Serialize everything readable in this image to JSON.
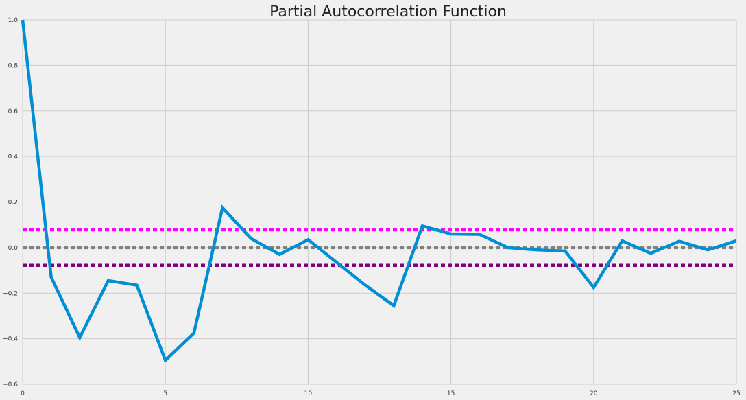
{
  "chart_data": {
    "type": "line",
    "title": "Partial Autocorrelation Function",
    "xlabel": "",
    "ylabel": "",
    "xlim": [
      0,
      25
    ],
    "ylim": [
      -0.6,
      1.0
    ],
    "grid": true,
    "x_ticks": [
      "0",
      "5",
      "10",
      "15",
      "20",
      "25"
    ],
    "y_ticks": [
      "1.0",
      "0.8",
      "0.6",
      "0.4",
      "0.2",
      "0.0",
      "−0.2",
      "−0.4",
      "−0.6"
    ],
    "series": [
      {
        "color": "#008fd5",
        "x": [
          0,
          1,
          2,
          3,
          4,
          5,
          6,
          7,
          8,
          9,
          10,
          11,
          12,
          13,
          14,
          15,
          16,
          17,
          18,
          19,
          20,
          21,
          22,
          23,
          24,
          25
        ],
        "values": [
          1.0,
          -0.13,
          -0.395,
          -0.145,
          -0.165,
          -0.495,
          -0.375,
          0.175,
          0.04,
          -0.03,
          0.035,
          -0.065,
          -0.165,
          -0.255,
          0.095,
          0.06,
          0.058,
          0.0,
          -0.01,
          -0.015,
          -0.175,
          0.03,
          -0.025,
          0.028,
          -0.01,
          0.03
        ]
      }
    ],
    "reference_lines": [
      {
        "y": 0.078,
        "color": "#ff00ff",
        "style": "dotted"
      },
      {
        "y": 0.0,
        "color": "#808080",
        "style": "dotted"
      },
      {
        "y": -0.078,
        "color": "#800080",
        "style": "dotted"
      }
    ]
  }
}
